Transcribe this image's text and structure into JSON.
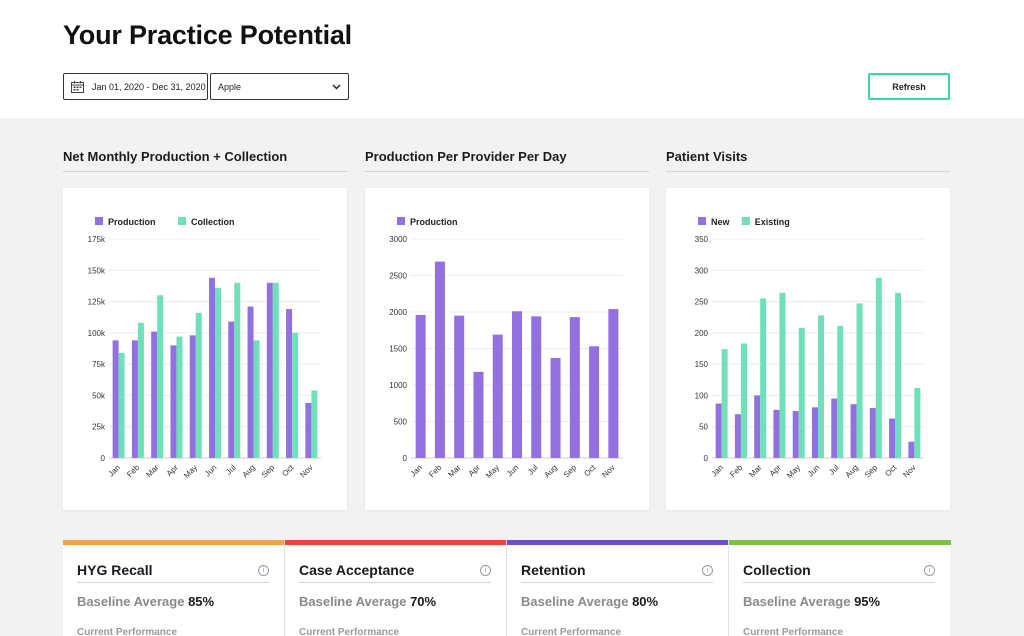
{
  "page": {
    "title": "Your Practice Potential"
  },
  "filters": {
    "date_range": "Jan 01, 2020 - Dec 31, 2020",
    "practice": "Apple",
    "refresh_label": "Refresh"
  },
  "colors": {
    "production": "#9370e0",
    "collection": "#6fe0b8",
    "refresh_border": "#38d6a8"
  },
  "sections": [
    {
      "title": "Net Monthly Production + Collection"
    },
    {
      "title": "Production Per Provider Per Day"
    },
    {
      "title": "Patient Visits"
    }
  ],
  "chart_data": [
    {
      "type": "bar",
      "categories": [
        "Jan",
        "Feb",
        "Mar",
        "Apr",
        "May",
        "Jun",
        "Jul",
        "Aug",
        "Sep",
        "Oct",
        "Nov"
      ],
      "series": [
        {
          "name": "Production",
          "color": "#9370e0",
          "values": [
            94000,
            94000,
            101000,
            90000,
            98000,
            144000,
            109000,
            121000,
            140000,
            119000,
            44000
          ]
        },
        {
          "name": "Collection",
          "color": "#6fe0b8",
          "values": [
            84000,
            108000,
            130000,
            97000,
            116000,
            136000,
            140000,
            94000,
            140000,
            100000,
            54000
          ]
        }
      ],
      "ylim": [
        0,
        175000
      ],
      "yticks": [
        0,
        25000,
        50000,
        75000,
        100000,
        125000,
        150000,
        175000
      ],
      "ytick_labels": [
        "0",
        "25k",
        "50k",
        "75k",
        "100k",
        "125k",
        "150k",
        "175k"
      ],
      "legend": "top-left",
      "grid": true
    },
    {
      "type": "bar",
      "categories": [
        "Jan",
        "Feb",
        "Mar",
        "Apr",
        "May",
        "Jun",
        "Jul",
        "Aug",
        "Sep",
        "Oct",
        "Nov"
      ],
      "series": [
        {
          "name": "Production",
          "color": "#9370e0",
          "values": [
            1960,
            2690,
            1950,
            1180,
            1690,
            2010,
            1940,
            1370,
            1930,
            1530,
            2040
          ]
        }
      ],
      "ylim": [
        0,
        3000
      ],
      "yticks": [
        0,
        500,
        1000,
        1500,
        2000,
        2500,
        3000
      ],
      "ytick_labels": [
        "0",
        "500",
        "1000",
        "1500",
        "2000",
        "2500",
        "3000"
      ],
      "legend": "top-left",
      "grid": true
    },
    {
      "type": "bar",
      "categories": [
        "Jan",
        "Feb",
        "Mar",
        "Apr",
        "May",
        "Jun",
        "Jul",
        "Aug",
        "Sep",
        "Oct",
        "Nov"
      ],
      "series": [
        {
          "name": "New",
          "color": "#9370e0",
          "values": [
            87,
            70,
            100,
            77,
            75,
            81,
            95,
            86,
            80,
            63,
            26
          ]
        },
        {
          "name": "Existing",
          "color": "#6fe0b8",
          "values": [
            174,
            183,
            255,
            264,
            208,
            228,
            211,
            247,
            288,
            264,
            112
          ]
        }
      ],
      "ylim": [
        0,
        350
      ],
      "yticks": [
        0,
        50,
        100,
        150,
        200,
        250,
        300,
        350
      ],
      "ytick_labels": [
        "0",
        "50",
        "100",
        "150",
        "200",
        "250",
        "300",
        "350"
      ],
      "legend": "top-left",
      "grid": true
    }
  ],
  "metrics": [
    {
      "title": "HYG Recall",
      "baseline_label": "Baseline Average",
      "baseline_value": "85%",
      "current_label": "Current Performance",
      "color": "#f0a545"
    },
    {
      "title": "Case Acceptance",
      "baseline_label": "Baseline Average",
      "baseline_value": "70%",
      "current_label": "Current Performance",
      "color": "#e8453c"
    },
    {
      "title": "Retention",
      "baseline_label": "Baseline Average",
      "baseline_value": "80%",
      "current_label": "Current Performance",
      "color": "#6a4fd0"
    },
    {
      "title": "Collection",
      "baseline_label": "Baseline Average",
      "baseline_value": "95%",
      "current_label": "Current Performance",
      "color": "#7bc142"
    }
  ],
  "icons": {
    "calendar": "calendar-icon",
    "dropdown": "chevron-down-icon",
    "info": "info-icon"
  }
}
